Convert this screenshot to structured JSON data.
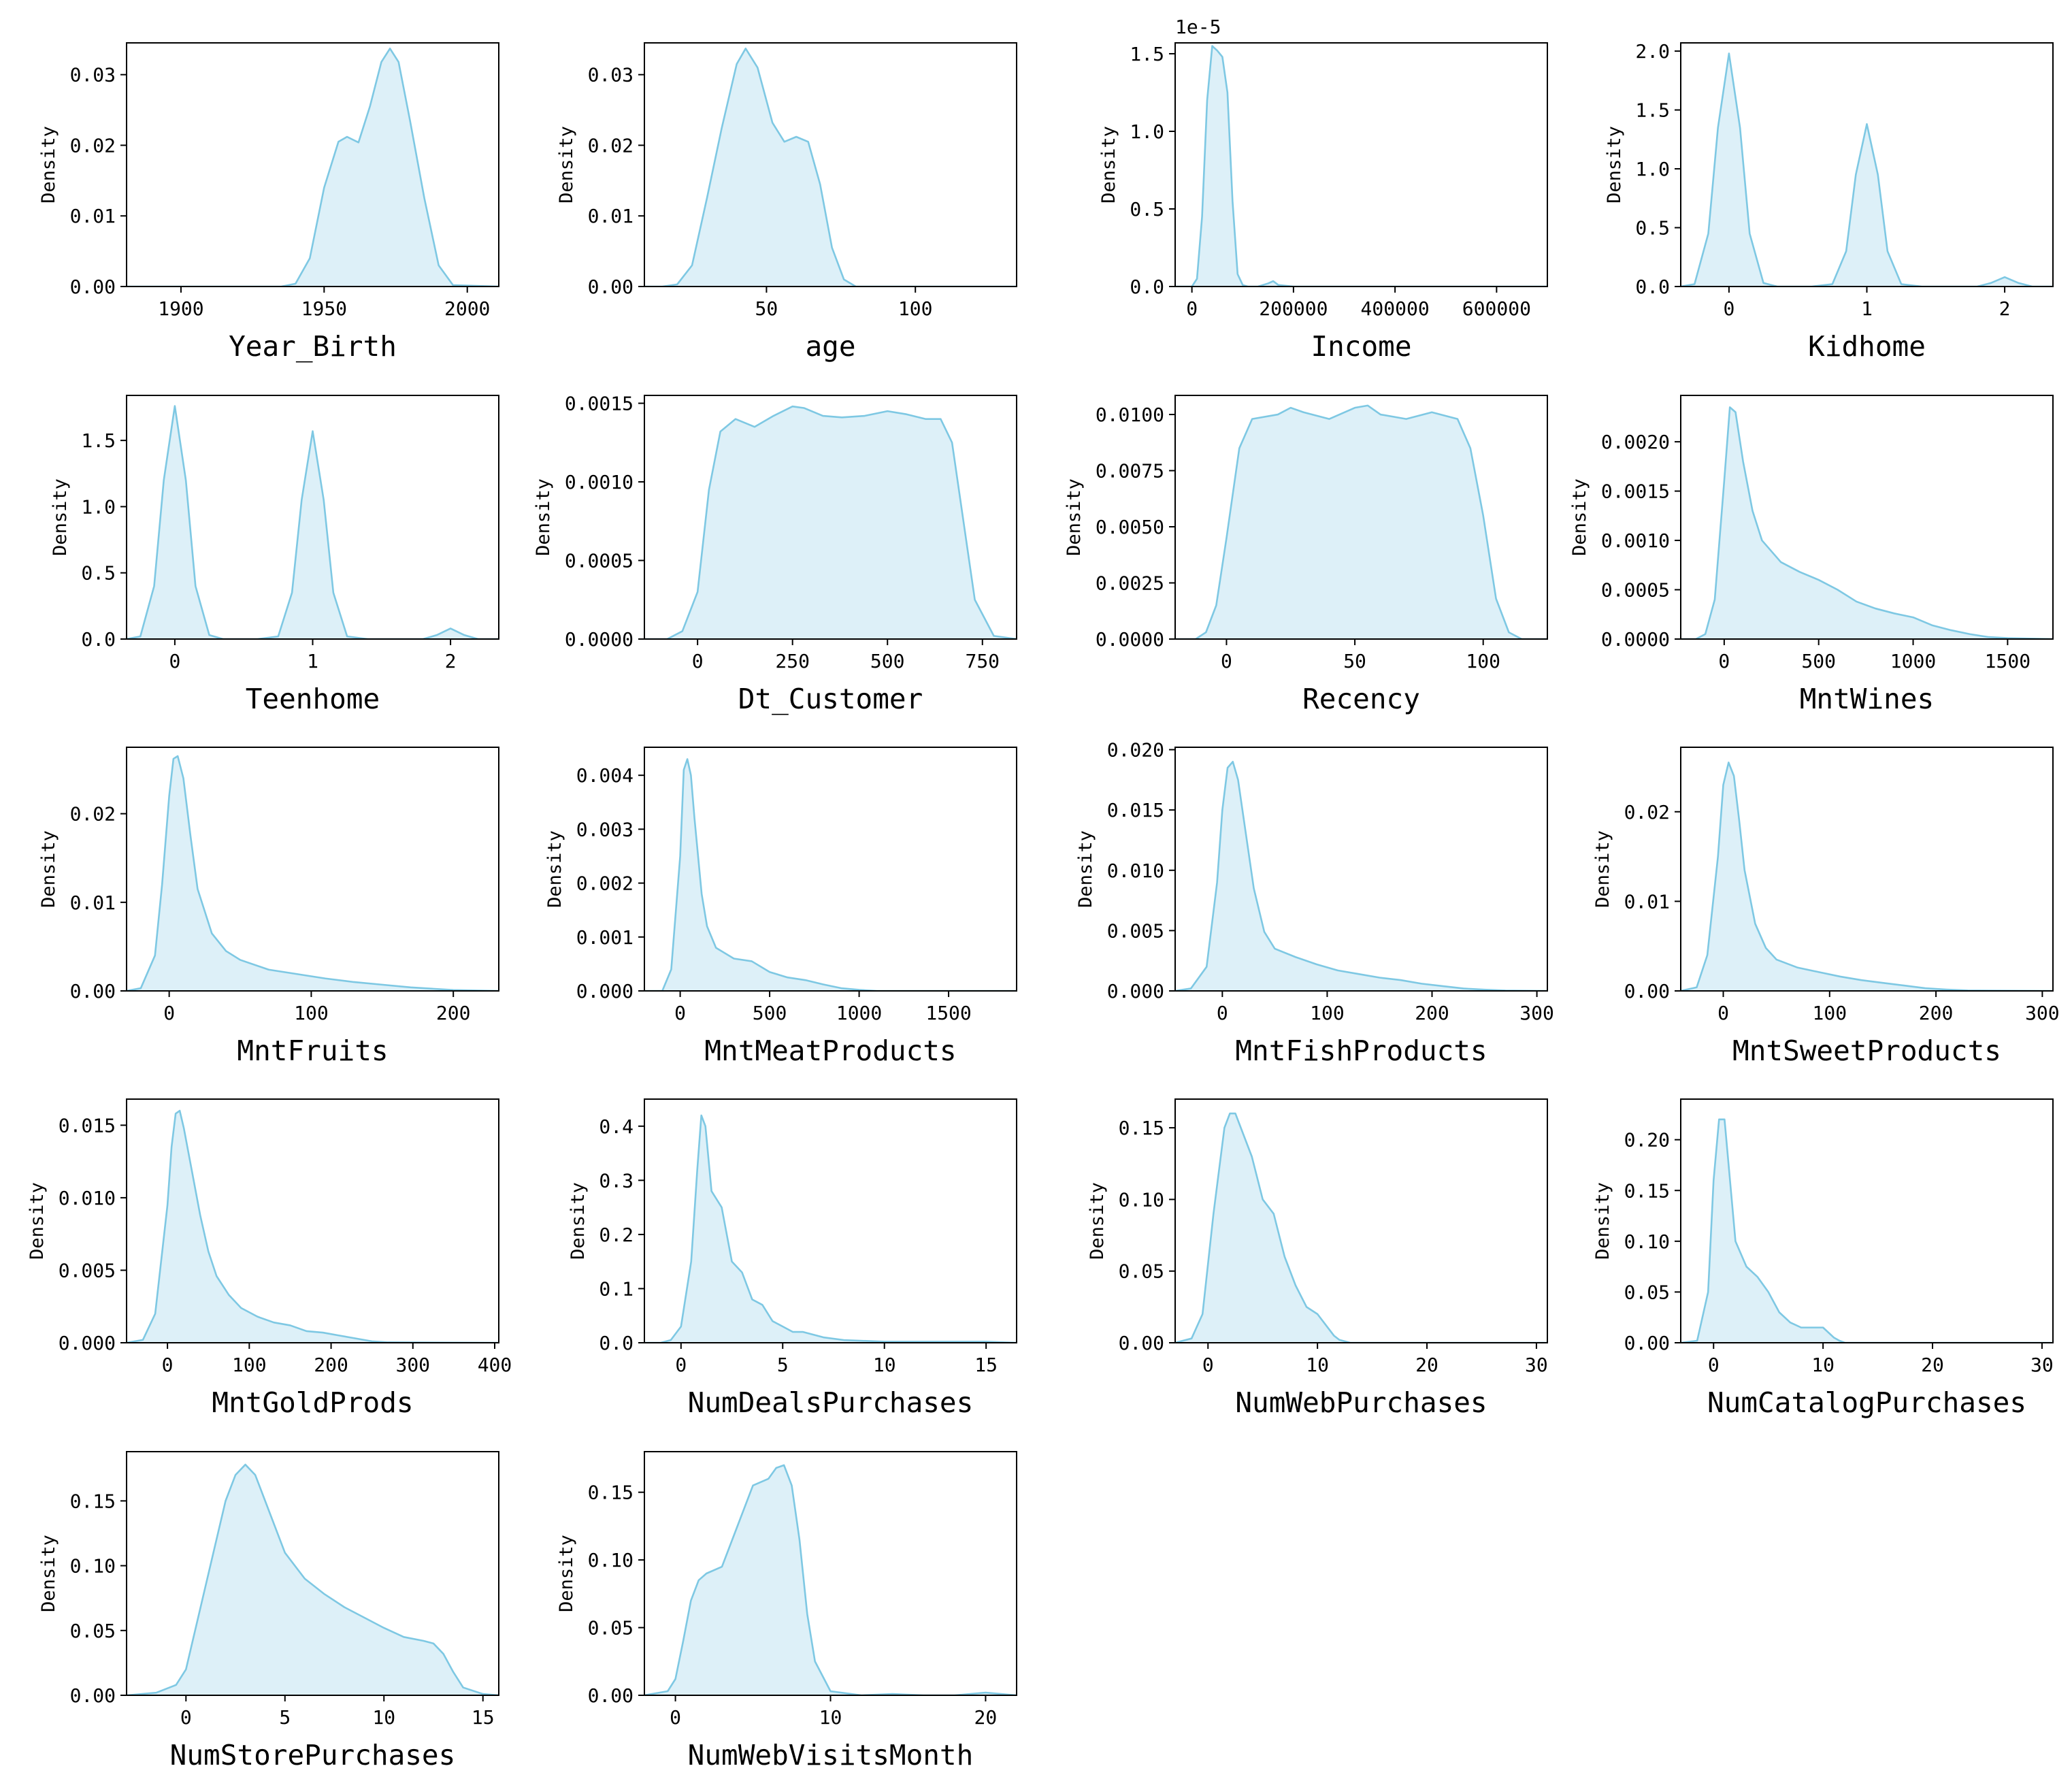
{
  "chart_data": [
    {
      "type": "area",
      "xlabel": "Year_Birth",
      "ylabel": "Density",
      "xlim": [
        1881,
        2011
      ],
      "ylim": [
        0,
        0.0345
      ],
      "xticks": [
        1900,
        1950,
        2000
      ],
      "yticks": [
        0.0,
        0.01,
        0.02,
        0.03
      ],
      "ytick_decimals": 2,
      "x": [
        1881,
        1900,
        1920,
        1935,
        1940,
        1945,
        1950,
        1955,
        1958,
        1962,
        1966,
        1970,
        1973,
        1976,
        1980,
        1985,
        1990,
        1995,
        2011
      ],
      "y": [
        0,
        0,
        0,
        0,
        0.0004,
        0.004,
        0.014,
        0.0205,
        0.0212,
        0.0204,
        0.0255,
        0.0318,
        0.0337,
        0.0318,
        0.0235,
        0.0125,
        0.003,
        0.0002,
        0
      ]
    },
    {
      "type": "area",
      "xlabel": "age",
      "ylabel": "Density",
      "xlim": [
        9,
        134
      ],
      "ylim": [
        0,
        0.0345
      ],
      "xticks": [
        50,
        100
      ],
      "yticks": [
        0.0,
        0.01,
        0.02,
        0.03
      ],
      "ytick_decimals": 2,
      "x": [
        9,
        15,
        20,
        25,
        30,
        35,
        40,
        43,
        47,
        52,
        56,
        60,
        64,
        68,
        72,
        76,
        80,
        90,
        134
      ],
      "y": [
        0,
        0,
        0.0003,
        0.003,
        0.0125,
        0.0225,
        0.0315,
        0.0337,
        0.031,
        0.0232,
        0.0205,
        0.0212,
        0.0205,
        0.0145,
        0.0055,
        0.001,
        0,
        0,
        0
      ]
    },
    {
      "type": "area",
      "xlabel": "Income",
      "ylabel": "Density",
      "offset_text": "1e-5",
      "xlim": [
        -33000,
        700000
      ],
      "ylim": [
        0,
        1.57
      ],
      "xticks": [
        0,
        200000,
        400000,
        600000
      ],
      "yticks": [
        0.0,
        0.5,
        1.0,
        1.5
      ],
      "ytick_decimals": 1,
      "x": [
        -33000,
        0,
        10000,
        20000,
        30000,
        40000,
        50000,
        60000,
        70000,
        80000,
        90000,
        100000,
        110000,
        130000,
        150000,
        160000,
        170000,
        200000,
        700000
      ],
      "y": [
        0,
        0,
        0.05,
        0.45,
        1.2,
        1.55,
        1.52,
        1.48,
        1.25,
        0.55,
        0.08,
        0.01,
        0,
        0,
        0.02,
        0.035,
        0.01,
        0,
        0
      ]
    },
    {
      "type": "area",
      "xlabel": "Kidhome",
      "ylabel": "Density",
      "xlim": [
        -0.35,
        2.35
      ],
      "ylim": [
        0,
        2.07
      ],
      "xticks": [
        0,
        1,
        2
      ],
      "yticks": [
        0.0,
        0.5,
        1.0,
        1.5,
        2.0
      ],
      "ytick_decimals": 1,
      "x": [
        -0.35,
        -0.25,
        -0.15,
        -0.08,
        0,
        0.08,
        0.15,
        0.25,
        0.35,
        0.6,
        0.75,
        0.85,
        0.92,
        1.0,
        1.08,
        1.15,
        1.25,
        1.4,
        1.8,
        1.9,
        2.0,
        2.1,
        2.2,
        2.35
      ],
      "y": [
        0,
        0.02,
        0.45,
        1.35,
        1.98,
        1.35,
        0.45,
        0.03,
        0,
        0,
        0.02,
        0.3,
        0.95,
        1.38,
        0.95,
        0.3,
        0.02,
        0,
        0,
        0.03,
        0.08,
        0.03,
        0,
        0
      ]
    },
    {
      "type": "area",
      "xlabel": "Teenhome",
      "ylabel": "Density",
      "xlim": [
        -0.35,
        2.35
      ],
      "ylim": [
        0,
        1.84
      ],
      "xticks": [
        0,
        1,
        2
      ],
      "yticks": [
        0.0,
        0.5,
        1.0,
        1.5
      ],
      "ytick_decimals": 1,
      "x": [
        -0.35,
        -0.25,
        -0.15,
        -0.08,
        0,
        0.08,
        0.15,
        0.25,
        0.35,
        0.6,
        0.75,
        0.85,
        0.92,
        1.0,
        1.08,
        1.15,
        1.25,
        1.4,
        1.8,
        1.9,
        2.0,
        2.1,
        2.2,
        2.35
      ],
      "y": [
        0,
        0.02,
        0.4,
        1.2,
        1.76,
        1.2,
        0.4,
        0.03,
        0,
        0,
        0.02,
        0.35,
        1.05,
        1.57,
        1.05,
        0.35,
        0.02,
        0,
        0,
        0.03,
        0.08,
        0.03,
        0,
        0
      ]
    },
    {
      "type": "area",
      "xlabel": "Dt_Customer",
      "ylabel": "Density",
      "xlim": [
        -140,
        840
      ],
      "ylim": [
        0,
        0.00155
      ],
      "xticks": [
        0,
        250,
        500,
        750
      ],
      "yticks": [
        0.0,
        0.0005,
        0.001,
        0.0015
      ],
      "ytick_decimals": 4,
      "x": [
        -140,
        -80,
        -40,
        0,
        30,
        60,
        100,
        150,
        200,
        250,
        280,
        330,
        380,
        440,
        500,
        550,
        600,
        640,
        670,
        700,
        730,
        780,
        840
      ],
      "y": [
        0,
        0,
        5e-05,
        0.0003,
        0.00095,
        0.00132,
        0.0014,
        0.00135,
        0.00142,
        0.00148,
        0.00147,
        0.00142,
        0.00141,
        0.00142,
        0.00145,
        0.00143,
        0.0014,
        0.0014,
        0.00125,
        0.00075,
        0.00025,
        2e-05,
        0
      ]
    },
    {
      "type": "area",
      "xlabel": "Recency",
      "ylabel": "Density",
      "xlim": [
        -20,
        125
      ],
      "ylim": [
        0,
        0.01085
      ],
      "xticks": [
        0,
        50,
        100
      ],
      "yticks": [
        0.0,
        0.0025,
        0.005,
        0.0075,
        0.01
      ],
      "ytick_decimals": 4,
      "x": [
        -20,
        -12,
        -8,
        -4,
        0,
        5,
        10,
        20,
        25,
        30,
        40,
        50,
        55,
        60,
        70,
        80,
        90,
        95,
        100,
        105,
        110,
        115,
        125
      ],
      "y": [
        0,
        0,
        0.0003,
        0.0015,
        0.0045,
        0.0085,
        0.0098,
        0.01,
        0.0103,
        0.0101,
        0.0098,
        0.0103,
        0.0104,
        0.01,
        0.0098,
        0.0101,
        0.0098,
        0.0085,
        0.0055,
        0.0018,
        0.0003,
        0,
        0
      ]
    },
    {
      "type": "area",
      "xlabel": "MntWines",
      "ylabel": "Density",
      "xlim": [
        -230,
        1740
      ],
      "ylim": [
        0,
        0.00247
      ],
      "xticks": [
        0,
        500,
        1000,
        1500
      ],
      "yticks": [
        0.0,
        0.0005,
        0.001,
        0.0015,
        0.002
      ],
      "ytick_decimals": 4,
      "x": [
        -230,
        -150,
        -100,
        -50,
        0,
        30,
        60,
        100,
        150,
        200,
        300,
        400,
        500,
        600,
        700,
        800,
        900,
        1000,
        1100,
        1200,
        1300,
        1400,
        1500,
        1740
      ],
      "y": [
        0,
        0,
        5e-05,
        0.0004,
        0.0016,
        0.00235,
        0.0023,
        0.0018,
        0.0013,
        0.001,
        0.00078,
        0.00068,
        0.0006,
        0.0005,
        0.00038,
        0.00031,
        0.00026,
        0.00022,
        0.00014,
        9e-05,
        5e-05,
        2e-05,
        1e-05,
        0
      ]
    },
    {
      "type": "area",
      "xlabel": "MntFruits",
      "ylabel": "Density",
      "xlim": [
        -30,
        232
      ],
      "ylim": [
        0,
        0.0275
      ],
      "xticks": [
        0,
        100,
        200
      ],
      "yticks": [
        0.0,
        0.01,
        0.02
      ],
      "ytick_decimals": 2,
      "x": [
        -30,
        -20,
        -10,
        -5,
        0,
        3,
        6,
        10,
        15,
        20,
        30,
        40,
        50,
        70,
        90,
        110,
        130,
        150,
        170,
        190,
        200,
        232
      ],
      "y": [
        0,
        0.0003,
        0.004,
        0.012,
        0.022,
        0.0262,
        0.0265,
        0.024,
        0.0175,
        0.0115,
        0.0065,
        0.0045,
        0.0035,
        0.0024,
        0.0019,
        0.0014,
        0.001,
        0.0007,
        0.0004,
        0.0002,
        0.0001,
        0
      ]
    },
    {
      "type": "area",
      "xlabel": "MntMeatProducts",
      "ylabel": "Density",
      "xlim": [
        -200,
        1880
      ],
      "ylim": [
        0,
        0.00452
      ],
      "xticks": [
        0,
        500,
        1000,
        1500
      ],
      "yticks": [
        0.0,
        0.001,
        0.002,
        0.003,
        0.004
      ],
      "ytick_decimals": 3,
      "x": [
        -200,
        -100,
        -50,
        0,
        20,
        40,
        60,
        80,
        120,
        150,
        200,
        300,
        400,
        500,
        600,
        700,
        800,
        900,
        1000,
        1100,
        1200,
        1500,
        1880
      ],
      "y": [
        0,
        0,
        0.0004,
        0.0025,
        0.0041,
        0.0043,
        0.004,
        0.0032,
        0.0018,
        0.0012,
        0.0008,
        0.0006,
        0.00055,
        0.00035,
        0.00025,
        0.0002,
        0.00012,
        5e-05,
        2e-05,
        0,
        0,
        0,
        0
      ]
    },
    {
      "type": "area",
      "xlabel": "MntFishProducts",
      "ylabel": "Density",
      "xlim": [
        -45,
        310
      ],
      "ylim": [
        0,
        0.0202
      ],
      "xticks": [
        0,
        100,
        200,
        300
      ],
      "yticks": [
        0.0,
        0.005,
        0.01,
        0.015,
        0.02
      ],
      "ytick_decimals": 3,
      "x": [
        -45,
        -30,
        -15,
        -5,
        0,
        5,
        10,
        15,
        20,
        30,
        40,
        50,
        70,
        90,
        110,
        130,
        150,
        170,
        190,
        210,
        230,
        250,
        270,
        310
      ],
      "y": [
        0,
        0.0002,
        0.002,
        0.009,
        0.015,
        0.0185,
        0.019,
        0.0175,
        0.0145,
        0.0085,
        0.0049,
        0.0035,
        0.0028,
        0.0022,
        0.0017,
        0.0014,
        0.0011,
        0.0009,
        0.0006,
        0.0004,
        0.0002,
        0.0001,
        3e-05,
        0
      ]
    },
    {
      "type": "area",
      "xlabel": "MntSweetProducts",
      "ylabel": "Density",
      "xlim": [
        -40,
        310
      ],
      "ylim": [
        0,
        0.0272
      ],
      "xticks": [
        0,
        100,
        200,
        300
      ],
      "yticks": [
        0.0,
        0.01,
        0.02
      ],
      "ytick_decimals": 2,
      "x": [
        -40,
        -25,
        -15,
        -5,
        0,
        5,
        10,
        15,
        20,
        30,
        40,
        50,
        70,
        90,
        110,
        130,
        150,
        170,
        190,
        210,
        230,
        310
      ],
      "y": [
        0,
        0.0004,
        0.004,
        0.015,
        0.023,
        0.0255,
        0.024,
        0.019,
        0.0135,
        0.0075,
        0.0048,
        0.0035,
        0.0026,
        0.0021,
        0.0016,
        0.0012,
        0.0009,
        0.0006,
        0.0003,
        0.00015,
        5e-05,
        0
      ]
    },
    {
      "type": "area",
      "xlabel": "MntGoldProds",
      "ylabel": "Density",
      "xlim": [
        -50,
        405
      ],
      "ylim": [
        0,
        0.0168
      ],
      "xticks": [
        0,
        100,
        200,
        300,
        400
      ],
      "yticks": [
        0.0,
        0.005,
        0.01,
        0.015
      ],
      "ytick_decimals": 3,
      "x": [
        -50,
        -30,
        -15,
        0,
        5,
        10,
        15,
        20,
        30,
        40,
        50,
        60,
        75,
        90,
        110,
        130,
        150,
        170,
        190,
        210,
        230,
        250,
        270,
        405
      ],
      "y": [
        0,
        0.0002,
        0.002,
        0.0095,
        0.0135,
        0.0158,
        0.016,
        0.0148,
        0.0118,
        0.0088,
        0.0063,
        0.0046,
        0.0033,
        0.0024,
        0.0018,
        0.0014,
        0.0012,
        0.0008,
        0.0007,
        0.0005,
        0.0003,
        0.0001,
        3e-05,
        0
      ]
    },
    {
      "type": "area",
      "xlabel": "NumDealsPurchases",
      "ylabel": "Density",
      "xlim": [
        -1.8,
        16.5
      ],
      "ylim": [
        0,
        0.45
      ],
      "xticks": [
        0,
        5,
        10,
        15
      ],
      "yticks": [
        0.0,
        0.1,
        0.2,
        0.3,
        0.4
      ],
      "ytick_decimals": 1,
      "x": [
        -1.8,
        -1,
        -0.5,
        0,
        0.5,
        0.8,
        1.0,
        1.2,
        1.5,
        2.0,
        2.5,
        3.0,
        3.5,
        4.0,
        4.5,
        5.0,
        5.5,
        6.0,
        7.0,
        8.0,
        10.0,
        15.0,
        16.5
      ],
      "y": [
        0,
        0,
        0.005,
        0.03,
        0.15,
        0.32,
        0.42,
        0.4,
        0.28,
        0.25,
        0.15,
        0.13,
        0.08,
        0.07,
        0.04,
        0.03,
        0.02,
        0.02,
        0.01,
        0.005,
        0.002,
        0.002,
        0
      ]
    },
    {
      "type": "area",
      "xlabel": "NumWebPurchases",
      "ylabel": "Density",
      "xlim": [
        -3,
        31
      ],
      "ylim": [
        0,
        0.17
      ],
      "xticks": [
        0,
        10,
        20,
        30
      ],
      "yticks": [
        0.0,
        0.05,
        0.1,
        0.15
      ],
      "ytick_decimals": 2,
      "x": [
        -3,
        -1.5,
        -0.5,
        0.5,
        1.5,
        2.0,
        2.5,
        3.0,
        4.0,
        5.0,
        6.0,
        7.0,
        8.0,
        9.0,
        10.0,
        11.0,
        11.5,
        12.0,
        13,
        31
      ],
      "y": [
        0,
        0.003,
        0.02,
        0.09,
        0.15,
        0.16,
        0.16,
        0.15,
        0.13,
        0.1,
        0.09,
        0.06,
        0.04,
        0.025,
        0.02,
        0.01,
        0.005,
        0.002,
        0,
        0
      ]
    },
    {
      "type": "area",
      "xlabel": "NumCatalogPurchases",
      "ylabel": "Density",
      "xlim": [
        -3,
        31
      ],
      "ylim": [
        0,
        0.24
      ],
      "xticks": [
        0,
        10,
        20,
        30
      ],
      "yticks": [
        0.0,
        0.05,
        0.1,
        0.15,
        0.2
      ],
      "ytick_decimals": 2,
      "x": [
        -3,
        -1.5,
        -0.5,
        0,
        0.5,
        1.0,
        1.5,
        2.0,
        3.0,
        4.0,
        5.0,
        6.0,
        7.0,
        8.0,
        9.0,
        10.0,
        11.0,
        11.5,
        12,
        31
      ],
      "y": [
        0,
        0.002,
        0.05,
        0.16,
        0.22,
        0.22,
        0.16,
        0.1,
        0.075,
        0.065,
        0.05,
        0.03,
        0.02,
        0.015,
        0.015,
        0.015,
        0.005,
        0.002,
        0,
        0
      ]
    },
    {
      "type": "area",
      "xlabel": "NumStorePurchases",
      "ylabel": "Density",
      "xlim": [
        -3,
        15.8
      ],
      "ylim": [
        0,
        0.188
      ],
      "xticks": [
        0,
        5,
        10,
        15
      ],
      "yticks": [
        0.0,
        0.05,
        0.1,
        0.15
      ],
      "ytick_decimals": 2,
      "x": [
        -3,
        -1.5,
        -0.5,
        0,
        1.0,
        2.0,
        2.5,
        3.0,
        3.5,
        4.0,
        5.0,
        6.0,
        7.0,
        8.0,
        9.0,
        10.0,
        11.0,
        12.0,
        12.5,
        13.0,
        13.5,
        14.0,
        15.0,
        15.8
      ],
      "y": [
        0,
        0.002,
        0.008,
        0.02,
        0.085,
        0.15,
        0.17,
        0.178,
        0.17,
        0.15,
        0.11,
        0.09,
        0.078,
        0.068,
        0.06,
        0.052,
        0.045,
        0.042,
        0.04,
        0.032,
        0.018,
        0.006,
        0.001,
        0
      ]
    },
    {
      "type": "area",
      "xlabel": "NumWebVisitsMonth",
      "ylabel": "Density",
      "xlim": [
        -2,
        22
      ],
      "ylim": [
        0,
        0.18
      ],
      "xticks": [
        0,
        10,
        20
      ],
      "yticks": [
        0.0,
        0.05,
        0.1,
        0.15
      ],
      "ytick_decimals": 2,
      "x": [
        -2,
        -0.5,
        0,
        0.5,
        1.0,
        1.5,
        2.0,
        3.0,
        4.0,
        5.0,
        6.0,
        6.5,
        7.0,
        7.5,
        8.0,
        8.5,
        9.0,
        10.0,
        12.0,
        14.0,
        16.0,
        18.0,
        20.0,
        22.0
      ],
      "y": [
        0,
        0.003,
        0.012,
        0.04,
        0.07,
        0.085,
        0.09,
        0.095,
        0.125,
        0.155,
        0.16,
        0.168,
        0.17,
        0.155,
        0.115,
        0.06,
        0.025,
        0.003,
        0,
        0.001,
        0,
        0,
        0.002,
        0
      ]
    }
  ]
}
